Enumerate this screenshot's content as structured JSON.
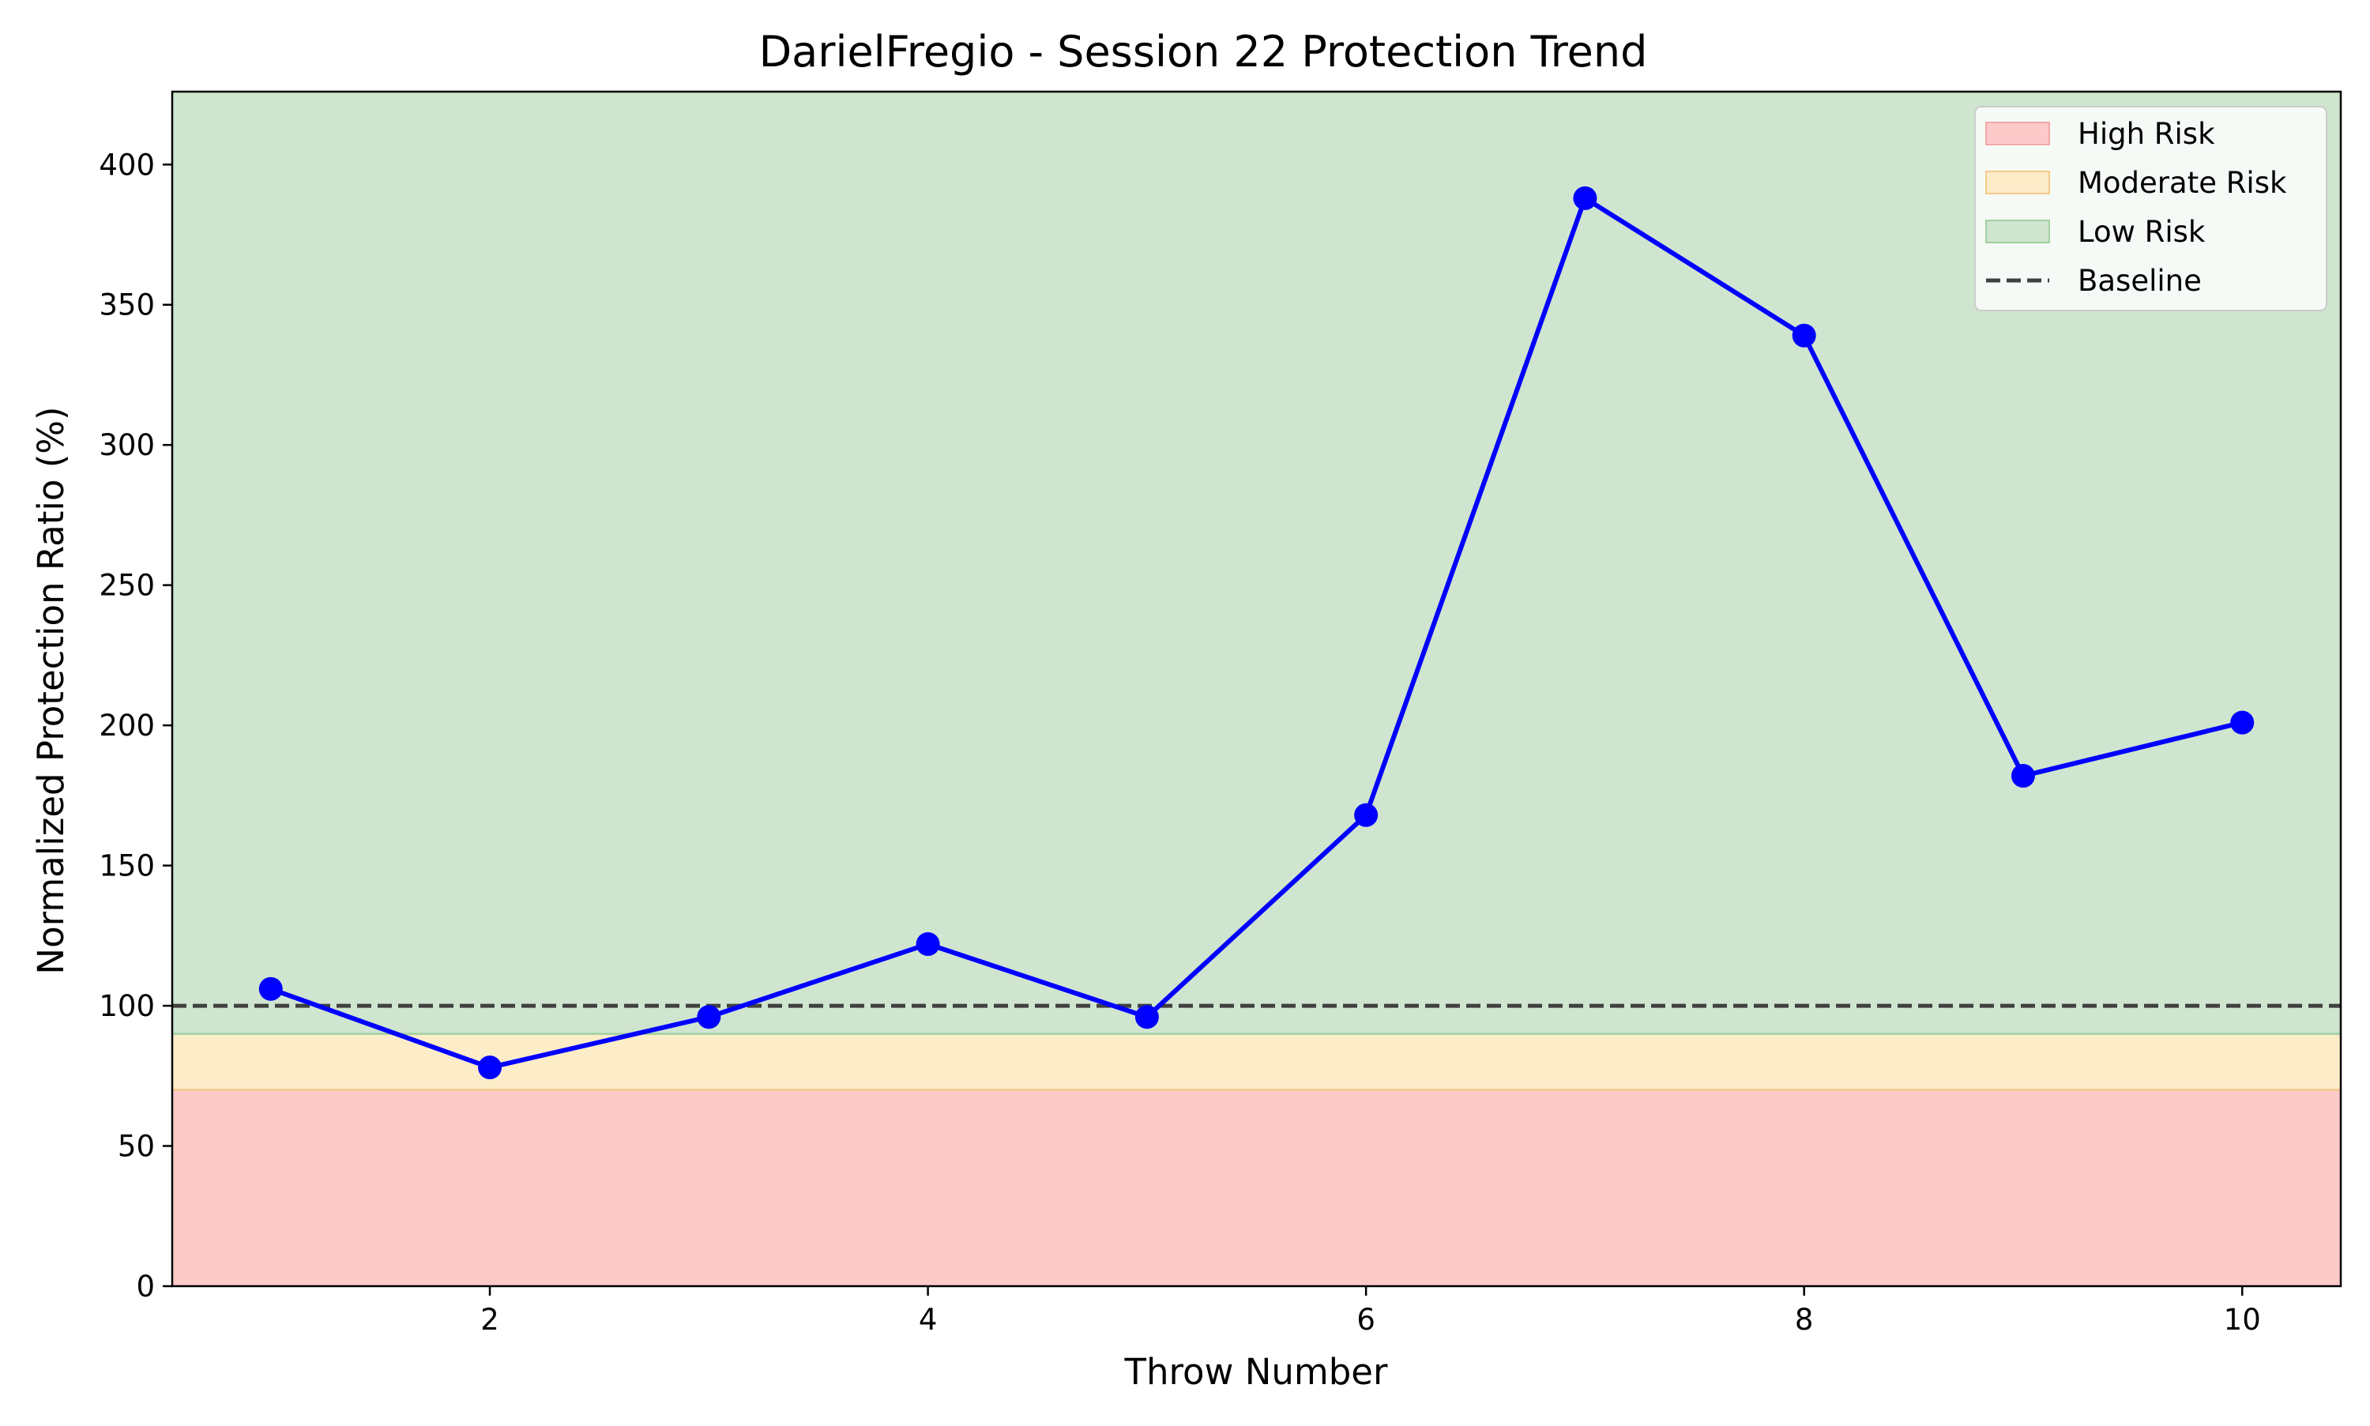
{
  "chart_data": {
    "type": "line",
    "title": "DarielFregio - Session 22 Protection Trend",
    "xlabel": "Throw Number",
    "ylabel": "Normalized Protection Ratio (%)",
    "xlim": [
      0.55,
      10.45
    ],
    "ylim": [
      0,
      426
    ],
    "xticks": [
      2,
      4,
      6,
      8,
      10
    ],
    "yticks": [
      0,
      50,
      100,
      150,
      200,
      250,
      300,
      350,
      400
    ],
    "grid": false,
    "legend_position": "top-right",
    "series": [
      {
        "x": [
          1,
          2,
          3,
          4,
          5,
          6,
          7,
          8,
          9,
          10
        ],
        "values": [
          106,
          78,
          96,
          122,
          96,
          168,
          388,
          339,
          182,
          201
        ],
        "color": "#0000ff",
        "marker": "circle"
      }
    ],
    "bands": [
      {
        "label": "High Risk",
        "from": 0,
        "to": 70,
        "fill": "#fdcaca",
        "edge": "#f4a7a7"
      },
      {
        "label": "Moderate Risk",
        "from": 70,
        "to": 90,
        "fill": "#fdecc8",
        "edge": "#f6c98a"
      },
      {
        "label": "Low Risk",
        "from": 90,
        "to": 426,
        "fill": "#cfe5cf",
        "edge": "#9fd09f"
      }
    ],
    "baseline": {
      "label": "Baseline",
      "value": 100,
      "color": "#404040",
      "style": "dashed"
    },
    "legend": [
      {
        "label": "High Risk",
        "kind": "patch",
        "color": "#fdcaca",
        "edge": "#f4a7a7"
      },
      {
        "label": "Moderate Risk",
        "kind": "patch",
        "color": "#fdecc8",
        "edge": "#f6c98a"
      },
      {
        "label": "Low Risk",
        "kind": "patch",
        "color": "#cfe5cf",
        "edge": "#9fd09f"
      },
      {
        "label": "Baseline",
        "kind": "dashed-line",
        "color": "#404040"
      }
    ]
  }
}
